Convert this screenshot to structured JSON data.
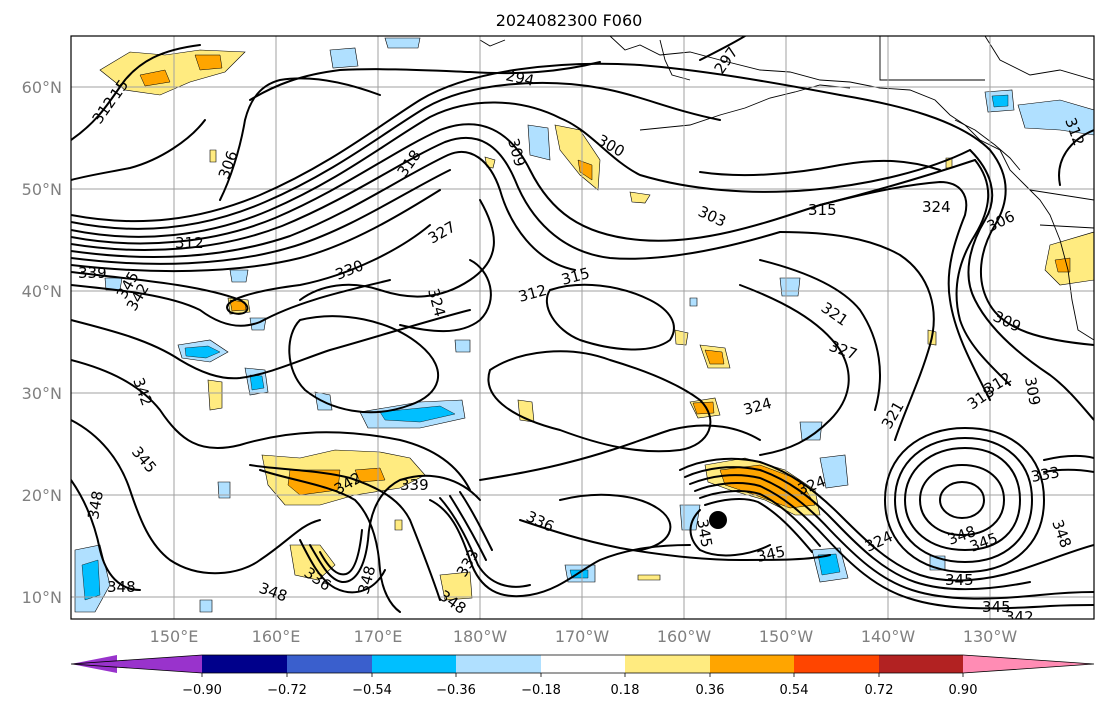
{
  "title": "2024082300 F060",
  "axes": {
    "lat_ticks": [
      "60°N",
      "50°N",
      "40°N",
      "30°N",
      "20°N",
      "10°N"
    ],
    "lon_ticks": [
      "150°E",
      "160°E",
      "170°E",
      "180°W",
      "170°W",
      "160°W",
      "150°W",
      "140°W",
      "130°W"
    ]
  },
  "contour_labels": [
    "294",
    "297",
    "300",
    "303",
    "306",
    "309",
    "312",
    "315",
    "318",
    "321",
    "324",
    "327",
    "330",
    "333",
    "336",
    "339",
    "342",
    "345",
    "348"
  ],
  "colorbar": {
    "tick_labels": [
      "−0.90",
      "−0.72",
      "−0.54",
      "−0.36",
      "−0.18",
      "0.18",
      "0.36",
      "0.54",
      "0.72",
      "0.90"
    ],
    "colors": [
      "#9933cc",
      "#00008b",
      "#3a5fcd",
      "#00bfff",
      "#b0e0ff",
      "#ffffff",
      "#ffeb80",
      "#ffa500",
      "#ff4500",
      "#b22222",
      "#ff8cb4"
    ]
  },
  "colors": {
    "positive_shading": "#ffeb80",
    "positive_core": "#ffa500",
    "negative_shading": "#b0e0ff",
    "negative_core": "#00bfff",
    "marker": "#000000"
  },
  "marker": {
    "lon": -155,
    "lat": 17.5,
    "symbol": "filled-circle"
  }
}
